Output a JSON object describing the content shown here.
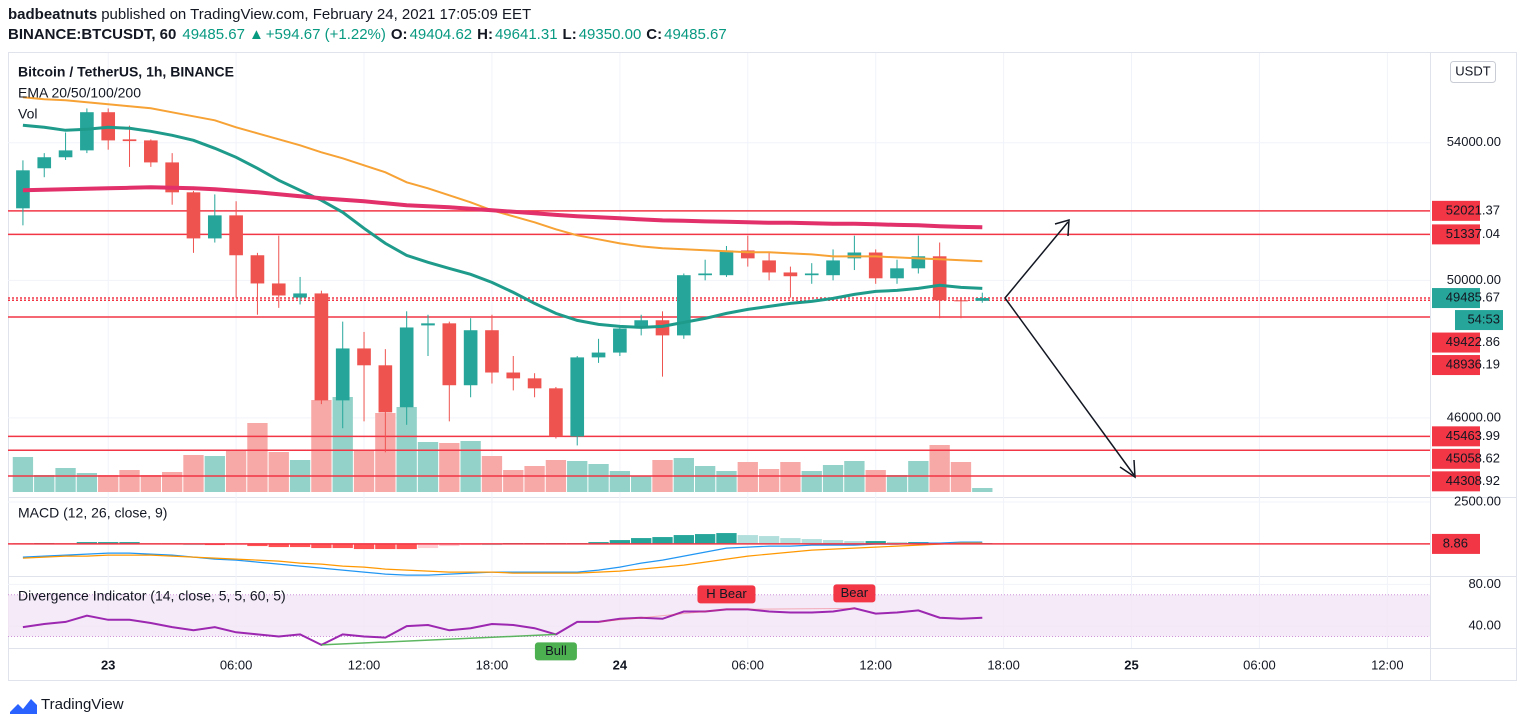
{
  "header": {
    "author": "badbeatnuts",
    "published": "published on TradingView.com, February 24, 2021 17:05:09 EET",
    "symbol": "BINANCE:BTCUSDT, 60",
    "last": "49485.67",
    "arrow": "▲",
    "change": "+594.67 (+1.22%)",
    "ohlc": [
      {
        "label": "O:",
        "value": "49404.62"
      },
      {
        "label": "H:",
        "value": "49641.31"
      },
      {
        "label": "L:",
        "value": "49350.00"
      },
      {
        "label": "C:",
        "value": "49485.67"
      }
    ]
  },
  "chart_data": {
    "type": "candlestick",
    "title": "Bitcoin / TetherUS, 1h, BINANCE",
    "ema_label": "EMA 20/50/100/200",
    "volume_label": "Vol",
    "currency": "USDT",
    "candles": {
      "x": [
        "2021-02-22T20:00",
        "2021-02-22T21:00",
        "2021-02-22T22:00",
        "2021-02-22T23:00",
        "2021-02-23T00:00",
        "2021-02-23T01:00",
        "2021-02-23T02:00",
        "2021-02-23T03:00",
        "2021-02-23T04:00",
        "2021-02-23T05:00",
        "2021-02-23T06:00",
        "2021-02-23T07:00",
        "2021-02-23T08:00",
        "2021-02-23T09:00",
        "2021-02-23T10:00",
        "2021-02-23T11:00",
        "2021-02-23T12:00",
        "2021-02-23T13:00",
        "2021-02-23T14:00",
        "2021-02-23T15:00",
        "2021-02-23T16:00",
        "2021-02-23T17:00",
        "2021-02-23T18:00",
        "2021-02-23T19:00",
        "2021-02-23T20:00",
        "2021-02-23T21:00",
        "2021-02-23T22:00",
        "2021-02-23T23:00",
        "2021-02-24T00:00",
        "2021-02-24T01:00",
        "2021-02-24T02:00",
        "2021-02-24T03:00",
        "2021-02-24T04:00",
        "2021-02-24T05:00",
        "2021-02-24T06:00",
        "2021-02-24T07:00",
        "2021-02-24T08:00",
        "2021-02-24T09:00",
        "2021-02-24T10:00",
        "2021-02-24T11:00",
        "2021-02-24T12:00",
        "2021-02-24T13:00",
        "2021-02-24T14:00",
        "2021-02-24T15:00",
        "2021-02-24T16:00",
        "2021-02-24T17:00"
      ],
      "open": [
        52095,
        53260,
        53580,
        53780,
        54890,
        54100,
        54070,
        53430,
        52560,
        51220,
        51890,
        50730,
        49910,
        49500,
        49620,
        46510,
        48020,
        47530,
        46310,
        48690,
        48750,
        46950,
        48550,
        47320,
        47150,
        46860,
        45460,
        47760,
        47900,
        48600,
        48840,
        48400,
        50150,
        50150,
        50870,
        50580,
        50230,
        50150,
        50150,
        50640,
        50810,
        50060,
        50350,
        50700,
        49420,
        49404.62
      ],
      "high": [
        53490,
        53700,
        54300,
        55000,
        55000,
        54500,
        54100,
        53700,
        52600,
        52500,
        52300,
        50800,
        51300,
        50100,
        49700,
        48800,
        48500,
        48000,
        49100,
        49000,
        48800,
        48900,
        49000,
        47800,
        47300,
        46900,
        47800,
        48300,
        48700,
        49000,
        49100,
        50200,
        50600,
        51000,
        51300,
        50800,
        50400,
        50500,
        50900,
        51300,
        50900,
        50600,
        51300,
        51100,
        49500,
        49641.31
      ],
      "low": [
        51600,
        53000,
        53500,
        53700,
        53800,
        53300,
        53300,
        52200,
        50800,
        51100,
        49500,
        49000,
        49200,
        49300,
        46400,
        45700,
        45900,
        45000,
        45800,
        47800,
        45900,
        46600,
        47000,
        46800,
        46600,
        45400,
        45200,
        47600,
        47800,
        48400,
        47200,
        48300,
        50000,
        50100,
        50400,
        50000,
        49500,
        49900,
        50000,
        50300,
        49900,
        49900,
        50200,
        48900,
        48900,
        49350
      ],
      "close": [
        53200,
        53580,
        53780,
        54890,
        54070,
        54050,
        53430,
        52560,
        51220,
        51890,
        50730,
        49910,
        49560,
        49620,
        46510,
        48020,
        47530,
        46160,
        48630,
        48750,
        46950,
        48550,
        47320,
        47150,
        46860,
        45460,
        47760,
        47900,
        48600,
        48840,
        48400,
        50150,
        50200,
        50870,
        50640,
        50230,
        50120,
        50200,
        50580,
        50810,
        50060,
        50350,
        50700,
        49420,
        49400,
        49485.67
      ],
      "volume": [
        35,
        17,
        24,
        19,
        17,
        22,
        17,
        20,
        37,
        36,
        42,
        69,
        40,
        32,
        92,
        95,
        42,
        79,
        85,
        50,
        49,
        51,
        36,
        22,
        26,
        32,
        31,
        28,
        21,
        16,
        32,
        34,
        26,
        21,
        30,
        23,
        30,
        21,
        27,
        31,
        22,
        17,
        31,
        47,
        30,
        4
      ]
    },
    "up_color": "#26a69a",
    "down_color": "#ef5350",
    "volume_up_color": "#92d2c9",
    "volume_down_color": "#f7a9a7",
    "ema": [
      {
        "color": "#1f9b8b",
        "width": 3,
        "values": [
          54509,
          54451,
          54364,
          54393,
          54451,
          54422,
          54334,
          54218,
          54073,
          53840,
          53578,
          53258,
          52909,
          52618,
          52327,
          51978,
          51513,
          51076,
          50727,
          50524,
          50349,
          50175,
          49942,
          49651,
          49331,
          49040,
          48836,
          48720,
          48662,
          48633,
          48662,
          48778,
          48895,
          49040,
          49156,
          49244,
          49331,
          49389,
          49476,
          49593,
          49680,
          49709,
          49767,
          49855,
          49796,
          49767
        ]
      },
      {
        "color": "#f7a235",
        "width": 2,
        "values": [
          55323,
          55265,
          55236,
          55178,
          55120,
          55062,
          55004,
          54887,
          54771,
          54654,
          54451,
          54276,
          54102,
          53927,
          53724,
          53549,
          53345,
          53142,
          52851,
          52676,
          52473,
          52269,
          52036,
          51862,
          51687,
          51484,
          51309,
          51193,
          51076,
          50989,
          50931,
          50902,
          50873,
          50844,
          50815,
          50815,
          50785,
          50756,
          50698,
          50698,
          50698,
          50669,
          50640,
          50611,
          50582,
          50553
        ]
      },
      {
        "color": "#e2306a",
        "width": 4,
        "values": [
          52618,
          52633,
          52647,
          52662,
          52676,
          52691,
          52705,
          52691,
          52676,
          52647,
          52604,
          52560,
          52502,
          52444,
          52385,
          52342,
          52298,
          52240,
          52182,
          52153,
          52124,
          52080,
          52036,
          51993,
          51949,
          51905,
          51862,
          51833,
          51804,
          51774,
          51745,
          51731,
          51716,
          51702,
          51687,
          51673,
          51673,
          51658,
          51644,
          51644,
          51629,
          51614,
          51600,
          51571,
          51556,
          51542
        ]
      }
    ],
    "levels": [
      {
        "value": 52021.37,
        "color": "#f23645",
        "line": "solid"
      },
      {
        "value": 51337.04,
        "color": "#f23645",
        "line": "solid"
      },
      {
        "value": 49485.67,
        "color": "#26a69a",
        "line": "dotted",
        "countdown": "54:53"
      },
      {
        "value": 49422.86,
        "color": "#f23645",
        "line": "dotted"
      },
      {
        "value": 48936.19,
        "color": "#f23645",
        "line": "solid"
      },
      {
        "value": 45463.99,
        "color": "#f23645",
        "line": "solid"
      },
      {
        "value": 45058.62,
        "color": "#f23645",
        "line": "solid"
      },
      {
        "value": 44308.92,
        "color": "#f23645",
        "line": "solid"
      }
    ],
    "xlim": [
      "2021-02-22T19:18",
      "2021-02-25T14:00"
    ],
    "xticks": [
      {
        "value": "2021-02-23T00:00",
        "label": "23"
      },
      {
        "value": "2021-02-23T06:00",
        "label": "06:00"
      },
      {
        "value": "2021-02-23T12:00",
        "label": "12:00"
      },
      {
        "value": "2021-02-23T18:00",
        "label": "18:00"
      },
      {
        "value": "2021-02-24T00:00",
        "label": "24"
      },
      {
        "value": "2021-02-24T06:00",
        "label": "06:00"
      },
      {
        "value": "2021-02-24T12:00",
        "label": "12:00"
      },
      {
        "value": "2021-02-24T18:00",
        "label": "18:00"
      },
      {
        "value": "2021-02-25T00:00",
        "label": "25"
      },
      {
        "value": "2021-02-25T06:00",
        "label": "06:00"
      },
      {
        "value": "2021-02-25T12:00",
        "label": "12:00"
      }
    ],
    "ylim": [
      43700,
      56350
    ],
    "yticks": [
      {
        "value": 54000,
        "label": "54000.00"
      },
      {
        "value": 50000,
        "label": "50000.00"
      },
      {
        "value": 46000,
        "label": "46000.00"
      }
    ],
    "grid": true,
    "macd": {
      "label": "MACD (12, 26, close, 9)",
      "ylim": [
        -1900,
        2800
      ],
      "yticks": [
        {
          "value": 2500,
          "label": "2500.00"
        }
      ],
      "last": 8.86,
      "last_color": "#f23645",
      "histogram": [
        59,
        60,
        59,
        119,
        119,
        119,
        60,
        59,
        0,
        -60,
        -59,
        -119,
        -178,
        -178,
        -238,
        -238,
        -297,
        -297,
        -298,
        -238,
        -119,
        -60,
        0,
        60,
        60,
        60,
        60,
        119,
        238,
        357,
        417,
        536,
        595,
        655,
        535,
        476,
        357,
        297,
        238,
        178,
        179,
        119,
        120,
        60,
        59,
        59
      ],
      "macd_line": {
        "color": "#2196f3",
        "values": [
          -774,
          -714,
          -655,
          -595,
          -536,
          -536,
          -595,
          -655,
          -774,
          -893,
          -952,
          -1071,
          -1190,
          -1309,
          -1428,
          -1547,
          -1666,
          -1785,
          -1845,
          -1845,
          -1785,
          -1726,
          -1666,
          -1666,
          -1666,
          -1666,
          -1666,
          -1547,
          -1369,
          -1131,
          -952,
          -714,
          -476,
          -238,
          -179,
          -119,
          -119,
          -60,
          -60,
          -60,
          0,
          0,
          60,
          60,
          119,
          119
        ]
      },
      "signal_line": {
        "color": "#ff9800",
        "values": [
          -833,
          -774,
          -714,
          -714,
          -655,
          -655,
          -655,
          -714,
          -774,
          -833,
          -893,
          -952,
          -1012,
          -1131,
          -1190,
          -1309,
          -1369,
          -1488,
          -1547,
          -1607,
          -1666,
          -1666,
          -1666,
          -1726,
          -1726,
          -1726,
          -1726,
          -1666,
          -1607,
          -1488,
          -1369,
          -1250,
          -1071,
          -893,
          -714,
          -595,
          -476,
          -357,
          -298,
          -238,
          -179,
          -119,
          -60,
          0,
          60,
          60
        ]
      }
    },
    "divergence": {
      "label": "Divergence Indicator (14, close, 5, 5, 60, 5)",
      "ylim": [
        19,
        88
      ],
      "yticks": [
        {
          "value": 80,
          "label": "80.00"
        },
        {
          "value": 40,
          "label": "40.00"
        }
      ],
      "bands": [
        30,
        70
      ],
      "color": "#9c27b0",
      "values": [
        39,
        42,
        44,
        50,
        46,
        46,
        43,
        39,
        36,
        39,
        34,
        32,
        30,
        32,
        22,
        32,
        30,
        29,
        40,
        41,
        36,
        38,
        42,
        41,
        38,
        32,
        44,
        44,
        47,
        48,
        47,
        54,
        54,
        56,
        56,
        54,
        53,
        53,
        54,
        57,
        52,
        53,
        55,
        48,
        47,
        48
      ],
      "signals": [
        {
          "label": "Bull",
          "kind": "bull",
          "x": "2021-02-23T21:00",
          "from": "2021-02-23T10:00"
        },
        {
          "label": "H Bear",
          "kind": "bear",
          "x": "2021-02-24T05:00",
          "from": "2021-02-23T23:00"
        },
        {
          "label": "Bear",
          "kind": "bear",
          "x": "2021-02-24T11:00",
          "from": "2021-02-24T05:00"
        }
      ]
    }
  },
  "footer": {
    "brand": "TradingView"
  }
}
